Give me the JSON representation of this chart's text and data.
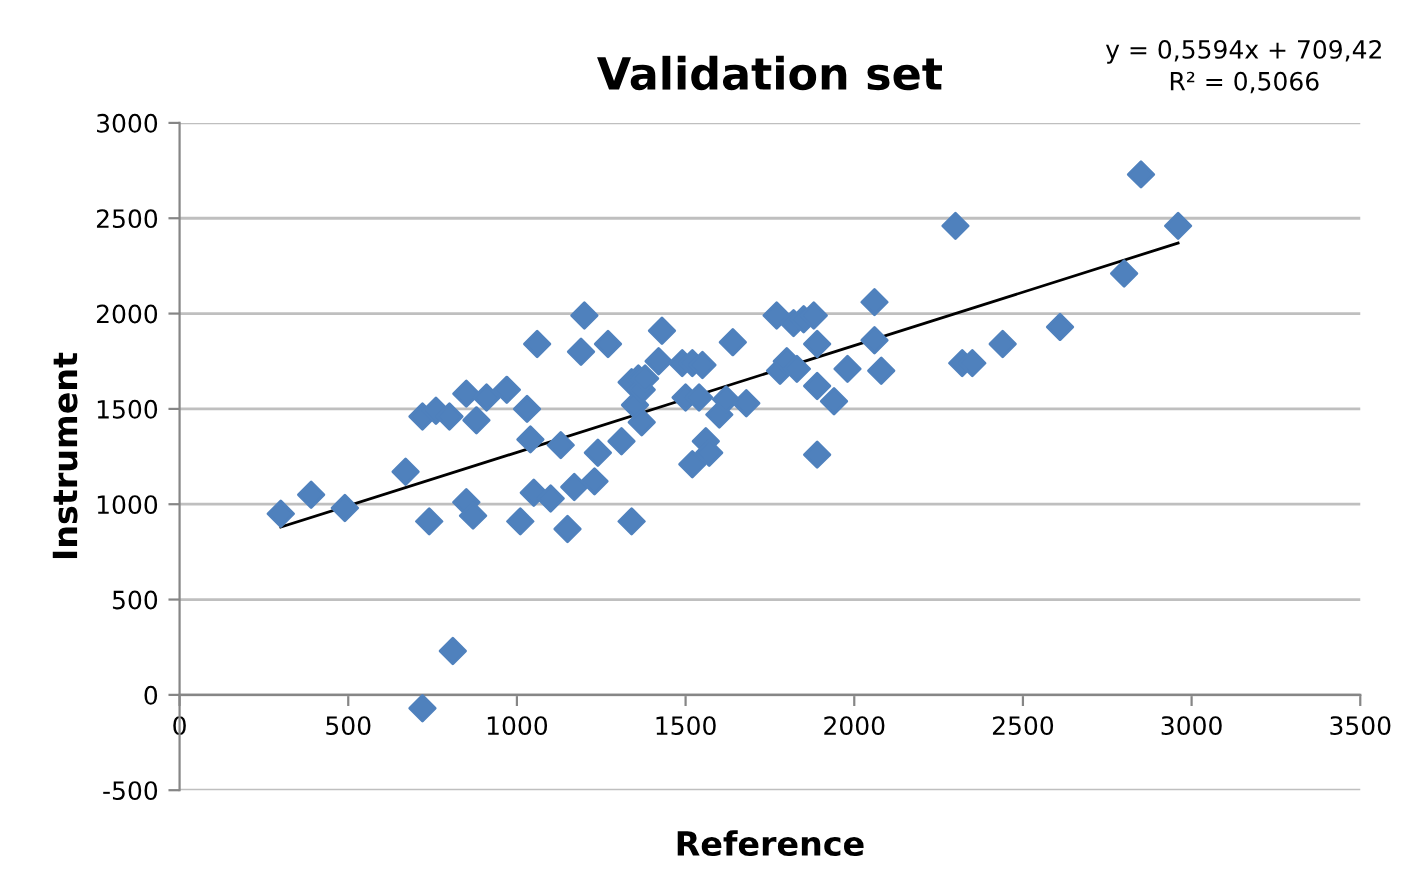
{
  "chart_data": {
    "type": "scatter",
    "title": "Validation set",
    "xlabel": "Reference",
    "ylabel": "Instrument",
    "annotations": [
      "y = 0,5594x + 709,42\nR² = 0,5066"
    ],
    "series": [
      {
        "color": "#4f81bd",
        "marker": "diamond",
        "x": [
          300,
          390,
          490,
          670,
          720,
          720,
          740,
          760,
          800,
          810,
          850,
          850,
          870,
          880,
          910,
          970,
          1010,
          1030,
          1040,
          1050,
          1060,
          1100,
          1130,
          1150,
          1170,
          1190,
          1200,
          1230,
          1240,
          1270,
          1310,
          1340,
          1340,
          1350,
          1360,
          1370,
          1370,
          1380,
          1420,
          1430,
          1490,
          1500,
          1520,
          1520,
          1540,
          1550,
          1560,
          1570,
          1600,
          1620,
          1640,
          1680,
          1770,
          1780,
          1800,
          1820,
          1830,
          1850,
          1880,
          1890,
          1890,
          1890,
          1940,
          1980,
          2060,
          2060,
          2080,
          2300,
          2320,
          2350,
          2440,
          2610,
          2800,
          2850,
          2960
        ],
        "values": [
          950,
          1050,
          980,
          1170,
          1460,
          -70,
          910,
          1490,
          1460,
          230,
          1010,
          1580,
          940,
          1440,
          1560,
          1600,
          910,
          1500,
          1340,
          1060,
          1840,
          1030,
          1310,
          870,
          1090,
          1800,
          1990,
          1120,
          1270,
          1840,
          1330,
          910,
          1640,
          1520,
          1660,
          1600,
          1430,
          1660,
          1750,
          1910,
          1740,
          1560,
          1740,
          1210,
          1560,
          1730,
          1330,
          1270,
          1470,
          1550,
          1850,
          1530,
          1990,
          1700,
          1750,
          1950,
          1710,
          1970,
          1990,
          1840,
          1620,
          1260,
          1540,
          1710,
          2060,
          1860,
          1700,
          2460,
          1740,
          1740,
          1840,
          1930,
          2210,
          2730,
          2460
        ]
      },
      {
        "type": "line",
        "color": "#000000",
        "marker": "none",
        "line_style": "solid",
        "x": [
          300,
          2960
        ],
        "values": [
          880,
          2370
        ]
      }
    ],
    "xlim": [
      0,
      3500
    ],
    "xticks": [
      0,
      500,
      1000,
      1500,
      2000,
      2500,
      3000,
      3500
    ],
    "ylim": [
      -500,
      3000
    ],
    "yticks": [
      -500,
      0,
      500,
      1000,
      1500,
      2000,
      2500,
      3000
    ],
    "grid": "y"
  }
}
